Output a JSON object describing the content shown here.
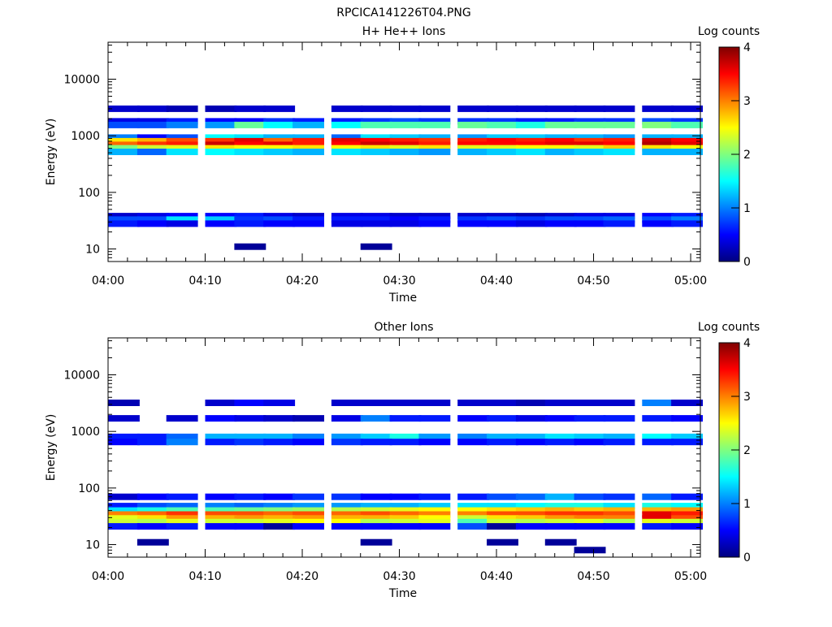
{
  "figure_title": "RPCICA141226T04.PNG",
  "colorbar_label": "Log counts",
  "colorbar_ticks": [
    "0",
    "1",
    "2",
    "3",
    "4"
  ],
  "y_tick_labels": [
    "10",
    "100",
    "1000",
    "10000"
  ],
  "x_tick_labels": [
    "04:00",
    "04:10",
    "04:20",
    "04:30",
    "04:40",
    "04:50",
    "05:00"
  ],
  "panels": [
    {
      "title": "H+ He++ Ions",
      "xlabel": "Time",
      "ylabel": "Energy (eV)"
    },
    {
      "title": "Other Ions",
      "xlabel": "Time",
      "ylabel": "Energy (eV)"
    }
  ],
  "chart_data": [
    {
      "type": "heatmap",
      "title": "H+ He++ Ions",
      "xlabel": "Time",
      "ylabel": "Energy (eV)",
      "x_range": [
        "04:00",
        "05:01"
      ],
      "y_range_eV": [
        6,
        45000
      ],
      "y_scale": "log",
      "colorbar": {
        "label": "Log counts",
        "range": [
          0,
          4
        ],
        "colormap": "jet"
      },
      "time_bins": [
        "04:00",
        "04:03",
        "04:06",
        "04:10",
        "04:13",
        "04:16",
        "04:19",
        "04:23",
        "04:26",
        "04:29",
        "04:32",
        "04:36",
        "04:39",
        "04:42",
        "04:45",
        "04:48",
        "04:51",
        "04:55",
        "04:58"
      ],
      "bands": [
        {
          "energy_eV": 3000,
          "values": [
            0.3,
            0.3,
            0.2,
            0.2,
            0.3,
            0.3,
            null,
            0.3,
            0.3,
            0.3,
            0.3,
            0.3,
            0.3,
            0.3,
            0.3,
            0.3,
            0.3,
            0.3,
            0.3
          ]
        },
        {
          "energy_eV": 1800,
          "values": [
            0.4,
            0.4,
            0.6,
            0.5,
            0.5,
            0.7,
            0.6,
            0.6,
            0.7,
            0.8,
            0.7,
            0.7,
            0.7,
            0.6,
            0.6,
            0.7,
            0.7,
            0.8,
            0.7
          ]
        },
        {
          "energy_eV": 1550,
          "values": [
            0.8,
            0.8,
            1.0,
            1.1,
            1.9,
            1.5,
            1.2,
            1.5,
            1.8,
            1.8,
            1.8,
            1.9,
            1.8,
            1.6,
            1.9,
            1.9,
            1.9,
            2.0,
            1.8
          ]
        },
        {
          "energy_eV": 930,
          "values": [
            1.0,
            0.5,
            0.8,
            1.5,
            1.4,
            1.2,
            1.2,
            0.9,
            1.4,
            1.3,
            1.2,
            1.1,
            1.3,
            1.3,
            1.2,
            1.2,
            1.1,
            1.2,
            1.2
          ]
        },
        {
          "energy_eV": 800,
          "values": [
            2.6,
            2.8,
            3.2,
            3.3,
            3.6,
            3.1,
            3.4,
            3.6,
            3.5,
            3.4,
            3.3,
            3.4,
            3.5,
            3.4,
            3.5,
            3.3,
            3.4,
            3.7,
            3.5
          ]
        },
        {
          "energy_eV": 690,
          "values": [
            3.1,
            3.3,
            3.4,
            3.7,
            3.5,
            3.6,
            3.4,
            3.5,
            3.7,
            3.6,
            3.4,
            3.5,
            3.5,
            3.5,
            3.6,
            3.6,
            3.5,
            3.8,
            3.6
          ]
        },
        {
          "energy_eV": 600,
          "values": [
            2.0,
            2.3,
            2.4,
            2.6,
            2.5,
            2.5,
            2.6,
            2.5,
            2.6,
            2.4,
            2.6,
            2.4,
            2.4,
            2.5,
            2.5,
            2.4,
            2.7,
            2.6,
            2.5
          ]
        },
        {
          "energy_eV": 520,
          "values": [
            1.2,
            0.9,
            1.4,
            1.5,
            1.4,
            1.3,
            1.2,
            1.4,
            1.3,
            1.2,
            1.1,
            1.2,
            1.3,
            1.4,
            1.2,
            1.3,
            1.4,
            1.2,
            1.2
          ]
        },
        {
          "energy_eV": 38,
          "values": [
            0.3,
            0.4,
            0.5,
            0.5,
            0.6,
            0.4,
            0.3,
            0.4,
            0.4,
            0.3,
            0.3,
            0.3,
            0.3,
            0.2,
            0.3,
            0.4,
            0.4,
            0.5,
            0.6
          ]
        },
        {
          "energy_eV": 33,
          "values": [
            0.8,
            0.8,
            1.4,
            1.3,
            0.7,
            0.8,
            0.6,
            0.6,
            0.6,
            0.5,
            0.6,
            0.7,
            0.8,
            0.7,
            0.8,
            0.8,
            0.9,
            0.8,
            1.0
          ]
        },
        {
          "energy_eV": 28,
          "values": [
            0.6,
            0.5,
            0.4,
            0.5,
            0.6,
            0.5,
            0.5,
            0.4,
            0.4,
            0.4,
            0.5,
            0.5,
            0.5,
            0.4,
            0.5,
            0.5,
            0.6,
            0.5,
            0.6
          ]
        },
        {
          "energy_eV": 11,
          "values": [
            null,
            null,
            null,
            null,
            0.1,
            null,
            null,
            null,
            0.1,
            null,
            null,
            null,
            null,
            null,
            null,
            null,
            null,
            null,
            null
          ]
        }
      ]
    },
    {
      "type": "heatmap",
      "title": "Other Ions",
      "xlabel": "Time",
      "ylabel": "Energy (eV)",
      "x_range": [
        "04:00",
        "05:01"
      ],
      "y_range_eV": [
        6,
        45000
      ],
      "y_scale": "log",
      "colorbar": {
        "label": "Log counts",
        "range": [
          0,
          4
        ],
        "colormap": "jet"
      },
      "time_bins": [
        "04:00",
        "04:03",
        "04:06",
        "04:10",
        "04:13",
        "04:16",
        "04:19",
        "04:23",
        "04:26",
        "04:29",
        "04:32",
        "04:36",
        "04:39",
        "04:42",
        "04:45",
        "04:48",
        "04:51",
        "04:55",
        "04:58"
      ],
      "bands": [
        {
          "energy_eV": 3200,
          "values": [
            0.2,
            null,
            null,
            0.3,
            0.5,
            0.4,
            null,
            0.3,
            0.3,
            0.3,
            0.3,
            0.3,
            0.3,
            0.2,
            0.3,
            0.3,
            0.3,
            1.0,
            0.3
          ]
        },
        {
          "energy_eV": 1700,
          "values": [
            0.3,
            null,
            0.3,
            0.5,
            0.4,
            0.3,
            0.2,
            0.4,
            1.0,
            0.6,
            0.6,
            0.5,
            0.6,
            0.4,
            0.5,
            0.6,
            0.6,
            0.6,
            0.5
          ]
        },
        {
          "energy_eV": 800,
          "values": [
            0.6,
            0.6,
            0.9,
            1.2,
            1.2,
            1.2,
            1.0,
            1.1,
            1.3,
            1.6,
            1.1,
            1.0,
            1.2,
            1.2,
            1.4,
            1.3,
            1.2,
            1.5,
            1.3
          ]
        },
        {
          "energy_eV": 650,
          "values": [
            0.5,
            0.6,
            1.0,
            0.6,
            0.7,
            0.6,
            0.5,
            0.7,
            0.6,
            0.6,
            0.5,
            0.5,
            0.6,
            0.5,
            0.6,
            0.5,
            0.6,
            0.6,
            0.6
          ]
        },
        {
          "energy_eV": 70,
          "values": [
            0.3,
            0.5,
            0.6,
            0.5,
            0.6,
            0.5,
            0.7,
            0.7,
            0.5,
            0.5,
            0.6,
            0.6,
            0.8,
            0.9,
            1.2,
            0.8,
            0.7,
            0.9,
            0.6
          ]
        },
        {
          "energy_eV": 48,
          "values": [
            0.6,
            0.8,
            0.9,
            1.0,
            0.9,
            1.0,
            1.1,
            1.1,
            1.2,
            1.2,
            1.3,
            1.4,
            1.4,
            1.5,
            1.6,
            1.6,
            1.4,
            1.6,
            1.5
          ]
        },
        {
          "energy_eV": 40,
          "values": [
            1.4,
            1.6,
            1.8,
            1.8,
            1.9,
            2.0,
            2.1,
            2.2,
            2.3,
            2.4,
            2.5,
            2.5,
            2.6,
            2.7,
            2.8,
            2.7,
            2.8,
            2.8,
            2.9
          ]
        },
        {
          "energy_eV": 34,
          "values": [
            3.0,
            3.1,
            3.3,
            3.2,
            3.2,
            3.1,
            3.2,
            3.1,
            3.2,
            3.1,
            3.0,
            3.0,
            3.2,
            3.2,
            3.3,
            3.3,
            3.2,
            3.6,
            3.4
          ]
        },
        {
          "energy_eV": 29,
          "values": [
            2.4,
            2.6,
            2.9,
            2.8,
            2.9,
            2.8,
            2.9,
            2.8,
            2.8,
            2.7,
            2.5,
            2.3,
            2.6,
            2.7,
            2.9,
            3.0,
            3.0,
            3.6,
            3.2
          ]
        },
        {
          "energy_eV": 25,
          "values": [
            2.3,
            2.2,
            2.4,
            2.3,
            2.3,
            2.4,
            2.5,
            2.5,
            2.2,
            2.3,
            2.4,
            1.8,
            2.3,
            2.2,
            2.3,
            2.4,
            2.2,
            2.4,
            2.3
          ]
        },
        {
          "energy_eV": 21,
          "values": [
            0.6,
            0.5,
            0.6,
            0.5,
            0.5,
            0.1,
            0.5,
            0.5,
            0.5,
            0.5,
            0.5,
            0.8,
            0.1,
            0.5,
            0.5,
            0.5,
            0.5,
            0.6,
            0.5
          ]
        },
        {
          "energy_eV": 11,
          "values": [
            null,
            0.1,
            null,
            null,
            null,
            null,
            null,
            null,
            0.1,
            null,
            null,
            null,
            0.1,
            null,
            0.1,
            null,
            null,
            null,
            null
          ]
        },
        {
          "energy_eV": 8,
          "values": [
            null,
            null,
            null,
            null,
            null,
            null,
            null,
            null,
            null,
            null,
            null,
            null,
            null,
            null,
            null,
            0.1,
            null,
            null,
            null
          ]
        }
      ]
    }
  ]
}
